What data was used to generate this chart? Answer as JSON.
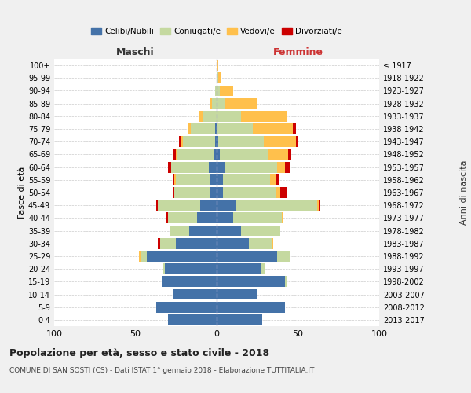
{
  "age_groups": [
    "0-4",
    "5-9",
    "10-14",
    "15-19",
    "20-24",
    "25-29",
    "30-34",
    "35-39",
    "40-44",
    "45-49",
    "50-54",
    "55-59",
    "60-64",
    "65-69",
    "70-74",
    "75-79",
    "80-84",
    "85-89",
    "90-94",
    "95-99",
    "100+"
  ],
  "birth_years": [
    "2013-2017",
    "2008-2012",
    "2003-2007",
    "1998-2002",
    "1993-1997",
    "1988-1992",
    "1983-1987",
    "1978-1982",
    "1973-1977",
    "1968-1972",
    "1963-1967",
    "1958-1962",
    "1953-1957",
    "1948-1952",
    "1943-1947",
    "1938-1942",
    "1933-1937",
    "1928-1932",
    "1923-1927",
    "1918-1922",
    "≤ 1917"
  ],
  "colors": {
    "celibi": "#4472a8",
    "coniugati": "#c5d9a0",
    "vedovi": "#ffc04c",
    "divorziati": "#cc0000"
  },
  "maschi": {
    "celibi": [
      30,
      37,
      27,
      34,
      32,
      43,
      25,
      17,
      12,
      10,
      4,
      4,
      5,
      2,
      1,
      1,
      0,
      0,
      0,
      0,
      0
    ],
    "coniugati": [
      0,
      0,
      0,
      0,
      1,
      4,
      10,
      12,
      18,
      26,
      22,
      21,
      23,
      22,
      20,
      15,
      8,
      3,
      1,
      0,
      0
    ],
    "vedovi": [
      0,
      0,
      0,
      0,
      0,
      1,
      0,
      0,
      0,
      0,
      0,
      1,
      0,
      1,
      1,
      2,
      3,
      1,
      0,
      0,
      0
    ],
    "divorziati": [
      0,
      0,
      0,
      0,
      0,
      0,
      1,
      0,
      1,
      1,
      1,
      1,
      2,
      2,
      1,
      0,
      0,
      0,
      0,
      0,
      0
    ]
  },
  "femmine": {
    "celibi": [
      28,
      42,
      25,
      42,
      27,
      37,
      20,
      15,
      10,
      12,
      4,
      4,
      5,
      2,
      1,
      0,
      0,
      0,
      0,
      0,
      0
    ],
    "coniugati": [
      0,
      0,
      0,
      1,
      3,
      8,
      14,
      24,
      30,
      50,
      32,
      29,
      32,
      30,
      28,
      22,
      15,
      5,
      2,
      1,
      0
    ],
    "vedovi": [
      0,
      0,
      0,
      0,
      0,
      0,
      1,
      0,
      1,
      1,
      3,
      3,
      5,
      12,
      20,
      25,
      28,
      20,
      8,
      2,
      1
    ],
    "divorziati": [
      0,
      0,
      0,
      0,
      0,
      0,
      0,
      0,
      0,
      1,
      4,
      2,
      3,
      2,
      1,
      2,
      0,
      0,
      0,
      0,
      0
    ]
  },
  "title": "Popolazione per età, sesso e stato civile - 2018",
  "subtitle": "COMUNE DI SAN SOSTI (CS) - Dati ISTAT 1° gennaio 2018 - Elaborazione TUTTITALIA.IT",
  "xlabel_left": "Maschi",
  "xlabel_right": "Femmine",
  "ylabel_left": "Fasce di età",
  "ylabel_right": "Anni di nascita",
  "xlim": 100,
  "legend_labels": [
    "Celibi/Nubili",
    "Coniugati/e",
    "Vedovi/e",
    "Divorziati/e"
  ],
  "background_color": "#f0f0f0",
  "plot_background": "#ffffff"
}
